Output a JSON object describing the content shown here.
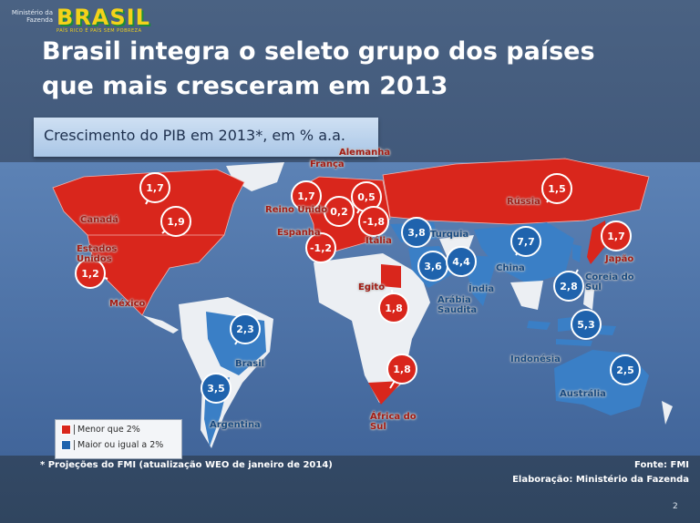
{
  "header": {
    "ministry": "Ministério da Fazenda",
    "logo": "BRASIL",
    "slogan": "PAÍS RICO É PAÍS SEM POBREZA",
    "title_lines": [
      "Brasil integra o seleto grupo dos países",
      "que mais cresceram em 2013"
    ],
    "subtitle": "Crescimento do PIB em 2013*, em % a.a."
  },
  "map": {
    "markers": [
      {
        "country": "Canadá",
        "value": "1,7",
        "color": "#d9261c"
      },
      {
        "country": "Estados Unidos",
        "value": "1,9",
        "color": "#d9261c"
      },
      {
        "country": "México",
        "value": "1,2",
        "color": "#d9261c"
      },
      {
        "country": "Reino Unido",
        "value": "1,7",
        "color": "#d9261c"
      },
      {
        "country": "França",
        "value": "0,2",
        "color": "#d9261c"
      },
      {
        "country": "Alemanha",
        "value": "0,5",
        "color": "#d9261c"
      },
      {
        "country": "Itália",
        "value": "-1,8",
        "color": "#d9261c"
      },
      {
        "country": "Espanha",
        "value": "-1,2",
        "color": "#d9261c"
      },
      {
        "country": "Rússia",
        "value": "1,5",
        "color": "#d9261c"
      },
      {
        "country": "Turquia",
        "value": "3,8",
        "color": "#1f63ad"
      },
      {
        "country": "Arábia Saudita",
        "value": "3,6",
        "color": "#1f63ad"
      },
      {
        "country": "Índia",
        "value": "4,4",
        "color": "#1f63ad"
      },
      {
        "country": "China",
        "value": "7,7",
        "color": "#1f63ad"
      },
      {
        "country": "Japão",
        "value": "1,7",
        "color": "#d9261c"
      },
      {
        "country": "Coreia do Sul",
        "value": "2,8",
        "color": "#1f63ad"
      },
      {
        "country": "Egito",
        "value": "1,8",
        "color": "#d9261c"
      },
      {
        "country": "Indonésia",
        "value": "5,3",
        "color": "#1f63ad"
      },
      {
        "country": "Austrália",
        "value": "2,5",
        "color": "#1f63ad"
      },
      {
        "country": "África do Sul",
        "value": "1,8",
        "color": "#d9261c"
      },
      {
        "country": "Brasil",
        "value": "2,3",
        "color": "#1f63ad"
      },
      {
        "country": "Argentina",
        "value": "3,5",
        "color": "#1f63ad"
      }
    ],
    "legend": [
      {
        "label": "Menor que 2%",
        "color": "#d9261c"
      },
      {
        "label": "Maior ou igual a 2%",
        "color": "#1f63ad"
      }
    ]
  },
  "footer": {
    "note": "* Projeções do FMI (atualização WEO de janeiro de 2014)",
    "source": "Fonte: FMI",
    "credit": "Elaboração: Ministério da Fazenda",
    "page": "2"
  }
}
